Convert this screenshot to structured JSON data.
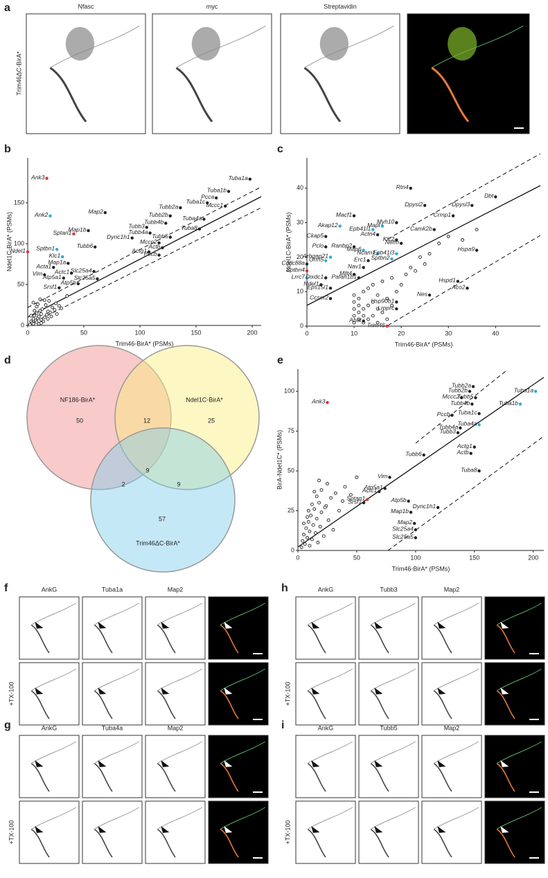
{
  "panel_a": {
    "label": "a",
    "row_label": "Trim46ΔC-BirA*",
    "channels": [
      {
        "label": "Nfasc",
        "color": "#3030d0"
      },
      {
        "label": "myc",
        "color": "#d42a2a"
      },
      {
        "label": "Streptavidin",
        "color": "#2ec02e"
      }
    ]
  },
  "chart_data": [
    {
      "type": "scatter",
      "panel": "b",
      "x_label": "Trim46-BirA* (PSMs)",
      "y_label": "Ndel1C-BirA* (PSMs)",
      "xlim": [
        0,
        208
      ],
      "ylim": [
        0,
        205
      ],
      "xticks": [
        0,
        50,
        100,
        150,
        200
      ],
      "yticks": [
        0,
        50,
        100,
        150
      ],
      "point_color": "#222222",
      "points": [
        {
          "label": "Ank3",
          "x": 17,
          "y": 180,
          "color": "#e0312f"
        },
        {
          "label": "Ank2",
          "x": 20,
          "y": 134,
          "color": "#29abd9"
        },
        {
          "label": "Sptan1",
          "x": 41,
          "y": 112,
          "color": "#e0312f"
        },
        {
          "label": "Sptbn1",
          "x": 26,
          "y": 93,
          "color": "#29abd9"
        },
        {
          "label": "Ndel1",
          "x": 0,
          "y": 90,
          "color": "#e0312f"
        },
        {
          "label": "Klc1",
          "x": 31,
          "y": 84,
          "color": "#29abd9"
        },
        {
          "label": "Map2",
          "x": 69,
          "y": 138
        },
        {
          "label": "Map1b",
          "x": 54,
          "y": 116
        },
        {
          "label": "Map1a",
          "x": 36,
          "y": 76
        },
        {
          "label": "Acta1",
          "x": 23,
          "y": 71
        },
        {
          "label": "Vim",
          "x": 15,
          "y": 62
        },
        {
          "label": "Actc1",
          "x": 39,
          "y": 64
        },
        {
          "label": "Atp5a1",
          "x": 32,
          "y": 58
        },
        {
          "label": "Atp5b",
          "x": 45,
          "y": 51
        },
        {
          "label": "Srsf1",
          "x": 28,
          "y": 46
        },
        {
          "label": "Slc25a4",
          "x": 59,
          "y": 66
        },
        {
          "label": "Slc25a5",
          "x": 62,
          "y": 57
        },
        {
          "label": "Tubb6",
          "x": 60,
          "y": 96
        },
        {
          "label": "Dync1h1",
          "x": 93,
          "y": 107
        },
        {
          "label": "Tubb3",
          "x": 106,
          "y": 120
        },
        {
          "label": "Tubb4a",
          "x": 109,
          "y": 113
        },
        {
          "label": "Tubb5",
          "x": 127,
          "y": 108
        },
        {
          "label": "Tubb4b",
          "x": 123,
          "y": 125
        },
        {
          "label": "Tubb2b",
          "x": 127,
          "y": 134
        },
        {
          "label": "Tubb2a",
          "x": 136,
          "y": 144
        },
        {
          "label": "Tuba1c",
          "x": 160,
          "y": 150
        },
        {
          "label": "Pcca",
          "x": 168,
          "y": 156
        },
        {
          "label": "Tuba1b",
          "x": 179,
          "y": 164
        },
        {
          "label": "Tuba1a",
          "x": 198,
          "y": 179
        },
        {
          "label": "Mccc1",
          "x": 176,
          "y": 146
        },
        {
          "label": "Tuba4a",
          "x": 157,
          "y": 130
        },
        {
          "label": "Tuba8",
          "x": 153,
          "y": 118
        },
        {
          "label": "Mccc2",
          "x": 117,
          "y": 101
        },
        {
          "label": "Actb",
          "x": 120,
          "y": 95
        },
        {
          "label": "Actg1",
          "x": 108,
          "y": 90
        },
        {
          "label": "Pccb",
          "x": 117,
          "y": 86
        }
      ],
      "background": {
        "x": [
          2,
          3,
          4,
          5,
          5,
          6,
          7,
          8,
          8,
          9,
          10,
          10,
          11,
          12,
          12,
          13,
          14,
          15,
          16,
          17,
          18,
          19,
          20,
          21,
          22,
          24,
          25,
          26,
          28,
          30,
          3,
          6,
          9,
          12,
          15,
          18,
          5,
          8,
          11,
          35
        ],
        "y": [
          1,
          5,
          3,
          8,
          2,
          12,
          6,
          4,
          15,
          9,
          2,
          11,
          18,
          7,
          14,
          20,
          5,
          10,
          25,
          13,
          8,
          30,
          16,
          11,
          22,
          19,
          27,
          14,
          24,
          21,
          12,
          18,
          26,
          3,
          31,
          17,
          28,
          23,
          32,
          36
        ]
      }
    },
    {
      "type": "scatter",
      "panel": "c",
      "x_label": "Trim46-BirA* (PSMs)",
      "y_label": "Ndel1C-BirA* (PSMs)",
      "xlim": [
        0,
        49.5
      ],
      "ylim": [
        0,
        48.8
      ],
      "xticks": [
        0,
        10,
        20,
        30,
        40
      ],
      "yticks": [
        0,
        10,
        20,
        30,
        40
      ],
      "point_color": "#222222",
      "points": [
        {
          "label": "Rtn4",
          "x": 22,
          "y": 40
        },
        {
          "label": "Macf1",
          "x": 10,
          "y": 32
        },
        {
          "label": "Dpysl2",
          "x": 25,
          "y": 35
        },
        {
          "label": "Dpysl3",
          "x": 35,
          "y": 35
        },
        {
          "label": "Dbt",
          "x": 40,
          "y": 37.5
        },
        {
          "label": "Myh10",
          "x": 19,
          "y": 30
        },
        {
          "label": "Crmp1",
          "x": 31,
          "y": 32
        },
        {
          "label": "Akap12",
          "x": 7,
          "y": 29,
          "color": "#29abd9"
        },
        {
          "label": "Mapt",
          "x": 16,
          "y": 29,
          "color": "#29abd9"
        },
        {
          "label": "Epb41l1",
          "x": 14,
          "y": 28,
          "color": "#29abd9"
        },
        {
          "label": "Actn4",
          "x": 15,
          "y": 26.5
        },
        {
          "label": "Camk2b",
          "x": 27,
          "y": 28
        },
        {
          "label": "Ckap5",
          "x": 4,
          "y": 26
        },
        {
          "label": "Klc2",
          "x": 19,
          "y": 25
        },
        {
          "label": "Pclo",
          "x": 4,
          "y": 23
        },
        {
          "label": "Ranbp2",
          "x": 10,
          "y": 23
        },
        {
          "label": "Nefm",
          "x": 20,
          "y": 24
        },
        {
          "label": "Map6",
          "x": 12,
          "y": 22,
          "color": "#29abd9"
        },
        {
          "label": "Arhgap21",
          "x": 5,
          "y": 20,
          "color": "#29abd9"
        },
        {
          "label": "Ncam1",
          "x": 15,
          "y": 21,
          "color": "#29abd9"
        },
        {
          "label": "Epb41l3",
          "x": 19,
          "y": 21,
          "color": "#29abd9"
        },
        {
          "label": "Grm5",
          "x": 4,
          "y": 19,
          "color": "#29abd9"
        },
        {
          "label": "Erc1",
          "x": 13,
          "y": 19
        },
        {
          "label": "Sptbn2",
          "x": 18,
          "y": 19.5,
          "color": "#29abd9"
        },
        {
          "label": "Ccdc88a",
          "x": 0,
          "y": 18
        },
        {
          "label": "Sptbn4",
          "x": 0,
          "y": 16,
          "color": "#e0312f"
        },
        {
          "label": "Nav1",
          "x": 12,
          "y": 17
        },
        {
          "label": "Mllt4",
          "x": 10,
          "y": 15
        },
        {
          "label": "Lrrc7",
          "x": 0,
          "y": 14,
          "color": "#29abd9"
        },
        {
          "label": "Dixdc1",
          "x": 4,
          "y": 14
        },
        {
          "label": "Pafah1b1",
          "x": 11,
          "y": 14
        },
        {
          "label": "Ndel1",
          "x": 3,
          "y": 12
        },
        {
          "label": "Eps15l1",
          "x": 5,
          "y": 11
        },
        {
          "label": "Hspa9",
          "x": 36,
          "y": 22
        },
        {
          "label": "Hspd1",
          "x": 32,
          "y": 13
        },
        {
          "label": "Aco2",
          "x": 34,
          "y": 11
        },
        {
          "label": "Nes",
          "x": 26,
          "y": 9
        },
        {
          "label": "Ccser2",
          "x": 5,
          "y": 8
        },
        {
          "label": "Hsp90b1",
          "x": 19,
          "y": 7
        },
        {
          "label": "Lrpprc",
          "x": 19,
          "y": 5
        },
        {
          "label": "Abat",
          "x": 12,
          "y": 1.5
        },
        {
          "label": "Trim46",
          "x": 17,
          "y": 0,
          "color": "#e0312f"
        }
      ],
      "background": {
        "x": [
          10,
          10,
          10,
          10,
          10,
          11,
          11,
          11,
          11,
          12,
          12,
          12,
          12,
          13,
          13,
          13,
          14,
          14,
          14,
          15,
          15,
          15,
          16,
          16,
          17,
          17,
          18,
          18,
          19,
          20,
          21,
          22,
          23,
          24,
          25,
          26,
          28,
          30,
          33,
          36
        ],
        "y": [
          1,
          3,
          5,
          7,
          9,
          2,
          4,
          6,
          8,
          1,
          3,
          5,
          10,
          2,
          6,
          11,
          3,
          7,
          12,
          1,
          5,
          9,
          4,
          13,
          2,
          8,
          6,
          14,
          10,
          12,
          15,
          17,
          16,
          20,
          18,
          21,
          24,
          26,
          25,
          28
        ]
      }
    },
    {
      "type": "scatter",
      "panel": "e",
      "x_label": "Trim46-BirA* (PSMs)",
      "y_label": "BirA-Ndel1C* (PSMs)",
      "xlim": [
        0,
        209
      ],
      "ylim": [
        0,
        114
      ],
      "xticks": [
        0,
        50,
        100,
        150,
        200
      ],
      "yticks": [
        0,
        25,
        50,
        75,
        100
      ],
      "point_color": "#222222",
      "points": [
        {
          "label": "Ank3",
          "x": 25,
          "y": 93,
          "color": "#e0312f"
        },
        {
          "label": "Tubb2a",
          "x": 149,
          "y": 103
        },
        {
          "label": "Tubb2b",
          "x": 146,
          "y": 100
        },
        {
          "label": "Mccc2",
          "x": 139,
          "y": 96
        },
        {
          "label": "Tubb5",
          "x": 151,
          "y": 96
        },
        {
          "label": "Tubb4b",
          "x": 148,
          "y": 92
        },
        {
          "label": "Tuba1a",
          "x": 202,
          "y": 100,
          "color": "#29abd9"
        },
        {
          "label": "Tuba1b",
          "x": 189,
          "y": 92,
          "color": "#29abd9"
        },
        {
          "label": "Tuba1c",
          "x": 154,
          "y": 86
        },
        {
          "label": "Tuba4a",
          "x": 154,
          "y": 79,
          "color": "#29abd9"
        },
        {
          "label": "Pccb",
          "x": 131,
          "y": 85
        },
        {
          "label": "Tubb4a",
          "x": 138,
          "y": 77
        },
        {
          "label": "Tubb3",
          "x": 136,
          "y": 74
        },
        {
          "label": "Actg1",
          "x": 150,
          "y": 65
        },
        {
          "label": "Actb",
          "x": 147,
          "y": 61
        },
        {
          "label": "Tuba8",
          "x": 154,
          "y": 50
        },
        {
          "label": "Tubb6",
          "x": 107,
          "y": 60
        },
        {
          "label": "Vim",
          "x": 78,
          "y": 46
        },
        {
          "label": "Atp5a1",
          "x": 74,
          "y": 39
        },
        {
          "label": "Actc1",
          "x": 69,
          "y": 37
        },
        {
          "label": "Sptan1",
          "x": 59,
          "y": 32,
          "color": "#e0312f"
        },
        {
          "label": "Srsf1",
          "x": 56,
          "y": 30
        },
        {
          "label": "Atp5b",
          "x": 94,
          "y": 31
        },
        {
          "label": "Map1b",
          "x": 96,
          "y": 24
        },
        {
          "label": "Dync1h1",
          "x": 119,
          "y": 27
        },
        {
          "label": "Map2",
          "x": 99,
          "y": 17
        },
        {
          "label": "Slc25a4",
          "x": 100,
          "y": 13
        },
        {
          "label": "Slc25a5",
          "x": 100,
          "y": 8
        }
      ],
      "background": {
        "x": [
          3,
          4,
          5,
          6,
          7,
          8,
          9,
          10,
          10,
          11,
          12,
          13,
          14,
          15,
          16,
          17,
          18,
          19,
          20,
          22,
          24,
          26,
          28,
          30,
          32,
          35,
          38,
          40,
          5,
          8,
          12,
          16,
          20,
          25,
          9,
          14,
          18,
          23,
          45,
          50
        ],
        "y": [
          2,
          6,
          10,
          4,
          14,
          8,
          18,
          3,
          12,
          22,
          7,
          16,
          26,
          11,
          20,
          5,
          30,
          15,
          24,
          9,
          28,
          19,
          33,
          13,
          36,
          25,
          31,
          40,
          17,
          21,
          29,
          34,
          38,
          42,
          25,
          37,
          44,
          27,
          35,
          46
        ]
      }
    }
  ],
  "venn": {
    "label": "d",
    "sets": [
      {
        "label": "NF186-BirA*",
        "color": "#f08a8a"
      },
      {
        "label": "Ndel1C-BirA*",
        "color": "#fbee7a"
      },
      {
        "label": "Trim46ΔC-BirA*",
        "color": "#7fcbeb"
      }
    ],
    "regions": [
      50,
      12,
      25,
      9,
      2,
      9,
      57
    ]
  },
  "micro": [
    {
      "label": "f",
      "row_label": "+TX-100",
      "channels": [
        {
          "label": "AnkG",
          "color": "#e0312f"
        },
        {
          "label": "Tuba1a",
          "color": "#2bab5c"
        },
        {
          "label": "Map2",
          "color": "#3030d0"
        }
      ]
    },
    {
      "label": "g",
      "row_label": "+TX-100",
      "channels": [
        {
          "label": "AnkG",
          "color": "#e0312f"
        },
        {
          "label": "Tuba4a",
          "color": "#2bab5c"
        },
        {
          "label": "Map2",
          "color": "#3030d0"
        }
      ]
    },
    {
      "label": "h",
      "row_label": "+TX-100",
      "channels": [
        {
          "label": "AnkG",
          "color": "#e0312f"
        },
        {
          "label": "Tubb3",
          "color": "#2bab5c"
        },
        {
          "label": "Map2",
          "color": "#3030d0"
        }
      ]
    },
    {
      "label": "i",
      "row_label": "+TX-100",
      "channels": [
        {
          "label": "AnkG",
          "color": "#e0312f"
        },
        {
          "label": "Tubb5",
          "color": "#2bab5c"
        },
        {
          "label": "Map2",
          "color": "#3030d0"
        }
      ]
    }
  ]
}
